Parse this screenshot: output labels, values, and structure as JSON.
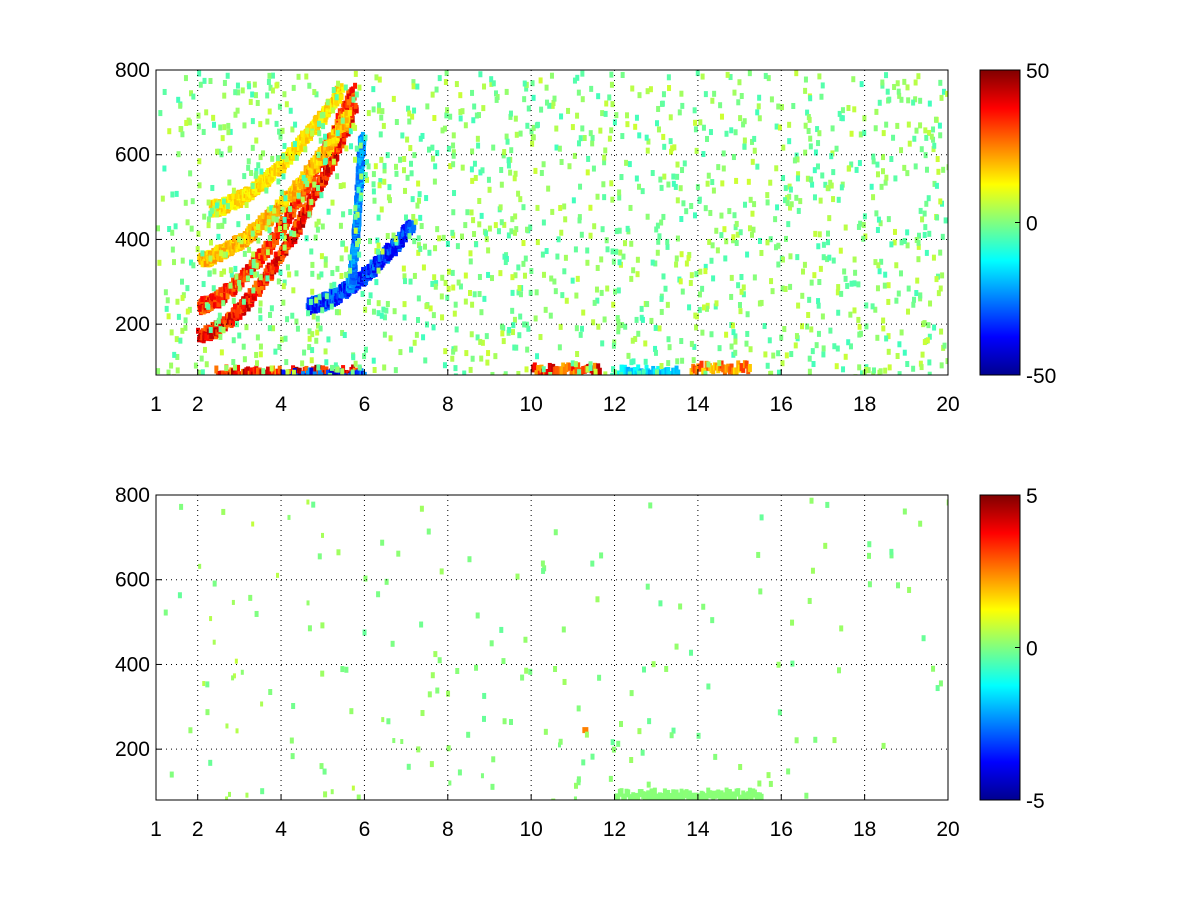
{
  "chart_data": [
    {
      "type": "heatmap",
      "title": "",
      "xlabel": "",
      "ylabel": "",
      "xlim": [
        1,
        20
      ],
      "ylim": [
        80,
        800
      ],
      "x_ticks": [
        "1",
        "2",
        "4",
        "6",
        "8",
        "10",
        "12",
        "14",
        "16",
        "18",
        "20"
      ],
      "y_ticks": [
        "200",
        "400",
        "600",
        "800"
      ],
      "grid": true,
      "colormap": "jet",
      "colorbar": {
        "min": -50,
        "max": 50,
        "ticks": [
          "50",
          "0",
          "-50"
        ]
      },
      "features": [
        {
          "kind": "ridge",
          "value": 42,
          "x0": 2.0,
          "y0": 180,
          "x1": 5.75,
          "y1": 720
        },
        {
          "kind": "ridge",
          "value": 38,
          "x0": 2.0,
          "y0": 250,
          "x1": 5.7,
          "y1": 760
        },
        {
          "kind": "ridge",
          "value": 22,
          "x0": 2.0,
          "y0": 360,
          "x1": 5.6,
          "y1": 700
        },
        {
          "kind": "ridge",
          "value": 18,
          "x0": 2.3,
          "y0": 480,
          "x1": 5.4,
          "y1": 760
        },
        {
          "kind": "ridge",
          "value": -38,
          "x0": 4.6,
          "y0": 250,
          "x1": 7.1,
          "y1": 440
        },
        {
          "kind": "ridge",
          "value": -28,
          "x0": 5.6,
          "y0": 300,
          "x1": 5.9,
          "y1": 650
        },
        {
          "kind": "band",
          "value": 45,
          "x0": 2.4,
          "x1": 5.9,
          "y": 95
        },
        {
          "kind": "band",
          "value": -42,
          "x0": 4.0,
          "x1": 6.0,
          "y": 88
        },
        {
          "kind": "band",
          "value": 40,
          "x0": 10.0,
          "x1": 11.6,
          "y": 100
        },
        {
          "kind": "band",
          "value": 30,
          "x0": 13.8,
          "x1": 15.2,
          "y": 105
        },
        {
          "kind": "band",
          "value": -20,
          "x0": 12.0,
          "x1": 13.5,
          "y": 95
        }
      ]
    },
    {
      "type": "heatmap",
      "title": "",
      "xlabel": "",
      "ylabel": "",
      "xlim": [
        1,
        20
      ],
      "ylim": [
        80,
        800
      ],
      "x_ticks": [
        "1",
        "2",
        "4",
        "6",
        "8",
        "10",
        "12",
        "14",
        "16",
        "18",
        "20"
      ],
      "y_ticks": [
        "200",
        "400",
        "600",
        "800"
      ],
      "grid": true,
      "colormap": "jet",
      "colorbar": {
        "min": -5,
        "max": 5,
        "ticks": [
          "5",
          "0",
          "-5"
        ]
      },
      "features": [
        {
          "kind": "region",
          "value": 0.4,
          "x0": 2.0,
          "x1": 5.8,
          "y0": 80,
          "y1": 800
        },
        {
          "kind": "region",
          "value": 0.3,
          "x0": 6.2,
          "x1": 7.2,
          "y0": 200,
          "y1": 520
        },
        {
          "kind": "region",
          "value": 0.2,
          "x0": 7.8,
          "x1": 9.2,
          "y0": 80,
          "y1": 240
        },
        {
          "kind": "region",
          "value": 0.2,
          "x0": 10.0,
          "x1": 11.5,
          "y0": 80,
          "y1": 220
        },
        {
          "kind": "band",
          "value": 0.1,
          "x0": 12.0,
          "x1": 15.5,
          "y": 100
        },
        {
          "kind": "point",
          "value": 2.5,
          "x": 11.3,
          "y": 245
        }
      ]
    }
  ]
}
